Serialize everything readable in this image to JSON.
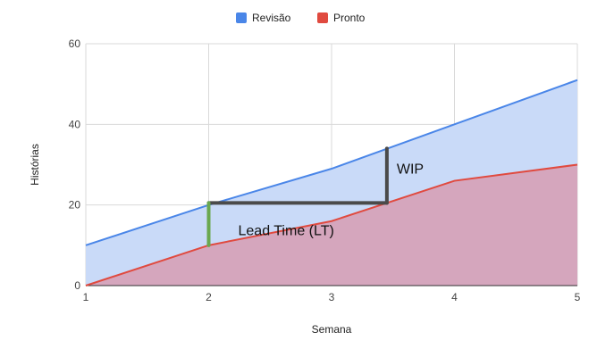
{
  "chart_data": {
    "type": "area",
    "title": "",
    "xlabel": "Semana",
    "ylabel": "Histórias",
    "x": [
      1,
      2,
      3,
      4,
      5
    ],
    "xlim": [
      1,
      5
    ],
    "ylim": [
      0,
      60
    ],
    "yticks": [
      0,
      20,
      40,
      60
    ],
    "xticks": [
      1,
      2,
      3,
      4,
      5
    ],
    "grid": true,
    "legend_position": "top-center",
    "series": [
      {
        "name": "Revisão",
        "values": [
          10,
          20,
          29,
          40,
          51
        ],
        "color": "#4a86e8",
        "fill": "#c9daf8"
      },
      {
        "name": "Pronto",
        "values": [
          0,
          10,
          16,
          26,
          30
        ],
        "color": "#e04a3f",
        "fill": "#d5a6bd"
      }
    ],
    "annotations": {
      "lead_time": {
        "label": "Lead Time (LT)",
        "x_start": 2,
        "x_end": 3.45,
        "y": 20.5,
        "color": "#4a4a4a"
      },
      "wip": {
        "label": "WIP",
        "x": 3.45,
        "y_start": 20.5,
        "y_end": 34,
        "color": "#4a4a4a"
      },
      "cycle": {
        "x": 2,
        "y_start": 10,
        "y_end": 20.5,
        "color": "#6aa84f"
      }
    }
  }
}
